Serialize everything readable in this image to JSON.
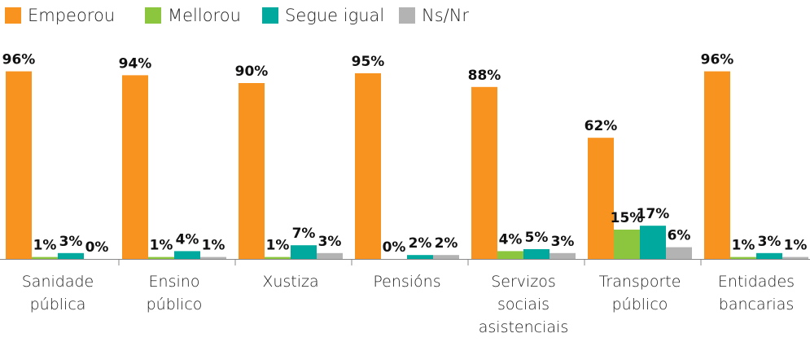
{
  "chart_data": {
    "type": "bar",
    "categories": [
      "Sanidade pública",
      "Ensino público",
      "Xustiza",
      "Pensións",
      "Servizos sociais asistenciais",
      "Transporte público",
      "Entidades bancarias"
    ],
    "series": [
      {
        "name": "Empeorou",
        "color": "#f7931e",
        "values": [
          96,
          94,
          90,
          95,
          88,
          62,
          96
        ],
        "value_labels": [
          "96%",
          "94%",
          "90%",
          "95%",
          "88%",
          "62%",
          "96%"
        ]
      },
      {
        "name": "Mellorou",
        "color": "#8cc63f",
        "values": [
          1,
          1,
          1,
          0,
          4,
          15,
          1
        ],
        "value_labels": [
          "1%",
          "1%",
          "1%",
          "0%",
          "4%",
          "15%",
          "1%"
        ]
      },
      {
        "name": "Segue igual",
        "color": "#00a99d",
        "values": [
          3,
          4,
          7,
          2,
          5,
          17,
          3
        ],
        "value_labels": [
          "3%",
          "4%",
          "7%",
          "2%",
          "5%",
          "17%",
          "3%"
        ]
      },
      {
        "name": "Ns/Nr",
        "color": "#b3b3b3",
        "values": [
          0,
          1,
          3,
          2,
          3,
          6,
          1
        ],
        "value_labels": [
          "0%",
          "1%",
          "3%",
          "2%",
          "3%",
          "6%",
          "1%"
        ]
      }
    ],
    "ylim": [
      0,
      100
    ],
    "legend": "top-left"
  }
}
